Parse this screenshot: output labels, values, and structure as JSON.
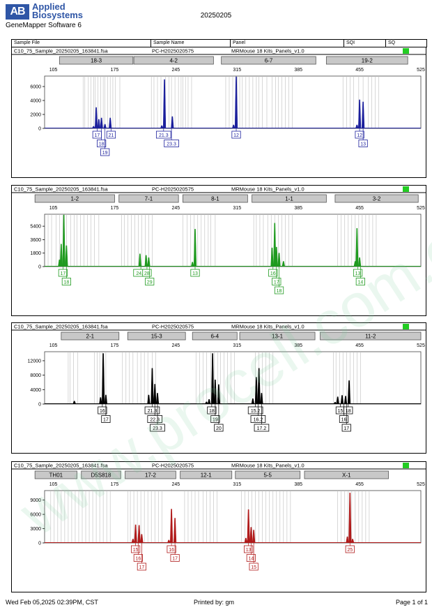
{
  "header": {
    "logo_mark": "AB",
    "brand_line1": "Applied",
    "brand_line2": "Biosystems",
    "software": "GeneMapper Software 6",
    "run_date": "20250205",
    "columns": [
      "Sample File",
      "Sample Name",
      "Panel",
      "SQI",
      "SQ"
    ]
  },
  "footer": {
    "timestamp": "Wed Feb 05,2025 02:39PM, CST",
    "printed_by": "Printed by: gm",
    "page": "Page 1 of 1"
  },
  "panels": [
    {
      "sample_file": "C10_75_Sample_20250205_163841.fsa",
      "sample_name": "PC-H2025020575",
      "panel_name": "MRMouse 18 Kits_Panels_v1.0",
      "dye_color": "#1b1f9c",
      "sq_color": "#22cc22",
      "bins": [
        {
          "label": "18-3",
          "start": 112,
          "end": 196
        },
        {
          "label": "4-2",
          "start": 197,
          "end": 288
        },
        {
          "label": "6-7",
          "start": 297,
          "end": 405
        },
        {
          "label": "19-2",
          "start": 417,
          "end": 510
        }
      ]
    },
    {
      "sample_file": "C10_75_Sample_20250205_163841.fsa",
      "sample_name": "PC-H2025020575",
      "panel_name": "MRMouse 18 Kits_Panels_v1.0",
      "dye_color": "#1f9a1f",
      "sq_color": "#22cc22",
      "bins": [
        {
          "label": "1-2",
          "start": 84,
          "end": 175
        },
        {
          "label": "7-1",
          "start": 180,
          "end": 248
        },
        {
          "label": "8-1",
          "start": 253,
          "end": 327
        },
        {
          "label": "1-1",
          "start": 332,
          "end": 417
        },
        {
          "label": "3-2",
          "start": 427,
          "end": 522
        }
      ]
    },
    {
      "sample_file": "C10_75_Sample_20250205_163841.fsa",
      "sample_name": "PC-H2025020575",
      "panel_name": "MRMouse 18 Kits_Panels_v1.0",
      "dye_color": "#000000",
      "sq_color": "#22cc22",
      "bins": [
        {
          "label": "2-1",
          "start": 114,
          "end": 180
        },
        {
          "label": "15-3",
          "start": 190,
          "end": 256
        },
        {
          "label": "6-4",
          "start": 264,
          "end": 315
        },
        {
          "label": "13-1",
          "start": 318,
          "end": 404
        },
        {
          "label": "11-2",
          "start": 410,
          "end": 525
        }
      ]
    },
    {
      "sample_file": "C10_75_Sample_20250205_163841.fsa",
      "sample_name": "PC-H2025020575",
      "panel_name": "MRMouse 18 Kits_Panels_v1.0",
      "dye_color": "#b01a1a",
      "sq_color": "#22cc22",
      "bins": [
        {
          "label": "TH01",
          "start": 84,
          "end": 132
        },
        {
          "label": "D5S818",
          "start": 137,
          "end": 182
        },
        {
          "label": "17-2",
          "start": 187,
          "end": 245
        },
        {
          "label": "12-1",
          "start": 250,
          "end": 309
        },
        {
          "label": "5-5",
          "start": 313,
          "end": 387
        },
        {
          "label": "X-1",
          "start": 392,
          "end": 488
        }
      ]
    }
  ],
  "chart_data": [
    {
      "type": "line",
      "xlim": [
        95,
        525
      ],
      "x_ticks": [
        105,
        175,
        245,
        315,
        385,
        455,
        525
      ],
      "ylim": [
        0,
        7500
      ],
      "y_ticks": [
        0,
        2000,
        4000,
        6000
      ],
      "grid_lines": [
        139,
        141,
        145,
        148,
        151,
        153,
        156,
        159,
        162,
        164,
        167,
        170,
        173,
        176,
        181,
        217,
        220,
        224,
        228,
        233,
        237,
        240,
        244,
        248,
        251,
        253,
        256,
        259,
        263,
        302,
        306,
        310,
        315,
        318,
        321,
        325,
        329,
        333,
        337,
        340,
        344,
        349,
        355,
        359,
        362,
        366,
        370,
        374,
        378,
        436,
        440,
        444,
        448,
        454,
        459,
        465,
        469,
        473,
        477
      ],
      "peaks": [
        {
          "x": 154,
          "y": 3000
        },
        {
          "x": 157,
          "y": 1300
        },
        {
          "x": 160,
          "y": 1500
        },
        {
          "x": 164,
          "y": 600
        },
        {
          "x": 170,
          "y": 1500
        },
        {
          "x": 151,
          "y": 300
        },
        {
          "x": 232,
          "y": 7000
        },
        {
          "x": 241,
          "y": 1700
        },
        {
          "x": 229,
          "y": 400
        },
        {
          "x": 314,
          "y": 7400
        },
        {
          "x": 311,
          "y": 500
        },
        {
          "x": 455,
          "y": 4100
        },
        {
          "x": 459,
          "y": 3800
        },
        {
          "x": 452,
          "y": 500
        }
      ],
      "allele_labels": [
        {
          "x": 155,
          "row": 0,
          "text": "17"
        },
        {
          "x": 160,
          "row": 1,
          "text": "18"
        },
        {
          "x": 164,
          "row": 2,
          "text": "19"
        },
        {
          "x": 171,
          "row": 0,
          "text": "21"
        },
        {
          "x": 231,
          "row": 0,
          "text": "21.3"
        },
        {
          "x": 240,
          "row": 1,
          "text": "23.3"
        },
        {
          "x": 314,
          "row": 0,
          "text": "12"
        },
        {
          "x": 455,
          "row": 0,
          "text": "12"
        },
        {
          "x": 459,
          "row": 1,
          "text": "13"
        }
      ]
    },
    {
      "type": "line",
      "xlim": [
        95,
        525
      ],
      "x_ticks": [
        105,
        175,
        245,
        315,
        385,
        455,
        525
      ],
      "ylim": [
        0,
        7000
      ],
      "y_ticks": [
        0,
        1800,
        3600,
        5400
      ],
      "grid_lines": [
        99,
        103,
        108,
        112,
        116,
        120,
        125,
        129,
        132,
        136,
        140,
        144,
        148,
        152,
        157,
        183,
        186,
        190,
        194,
        198,
        202,
        206,
        210,
        214,
        218,
        253,
        258,
        262,
        266,
        270,
        274,
        278,
        282,
        285,
        290,
        334,
        337,
        341,
        345,
        350,
        354,
        358,
        362,
        366,
        370,
        374,
        378,
        430,
        434,
        438,
        442,
        446,
        450,
        454,
        458,
        462,
        466,
        470,
        474
      ],
      "peaks": [
        {
          "x": 112,
          "y": 900
        },
        {
          "x": 114,
          "y": 3000
        },
        {
          "x": 117,
          "y": 6900
        },
        {
          "x": 120,
          "y": 2800
        },
        {
          "x": 204,
          "y": 1700
        },
        {
          "x": 211,
          "y": 1500
        },
        {
          "x": 214,
          "y": 1200
        },
        {
          "x": 267,
          "y": 5000
        },
        {
          "x": 264,
          "y": 600
        },
        {
          "x": 355,
          "y": 2500
        },
        {
          "x": 358,
          "y": 5800
        },
        {
          "x": 360,
          "y": 2600
        },
        {
          "x": 363,
          "y": 1800
        },
        {
          "x": 368,
          "y": 700
        },
        {
          "x": 450,
          "y": 700
        },
        {
          "x": 452,
          "y": 5100
        },
        {
          "x": 455,
          "y": 1200
        }
      ],
      "allele_labels": [
        {
          "x": 116,
          "row": 0,
          "text": "17"
        },
        {
          "x": 120,
          "row": 1,
          "text": "18"
        },
        {
          "x": 205,
          "row": 0,
          "text": "24.2"
        },
        {
          "x": 212,
          "row": 0,
          "text": "28"
        },
        {
          "x": 215,
          "row": 1,
          "text": "29"
        },
        {
          "x": 267,
          "row": 0,
          "text": "13"
        },
        {
          "x": 356,
          "row": 0,
          "text": "16"
        },
        {
          "x": 360,
          "row": 1,
          "text": "17"
        },
        {
          "x": 363,
          "row": 2,
          "text": "18"
        },
        {
          "x": 453,
          "row": 0,
          "text": "13"
        },
        {
          "x": 456,
          "row": 1,
          "text": "14"
        }
      ]
    },
    {
      "type": "line",
      "xlim": [
        95,
        525
      ],
      "x_ticks": [
        105,
        175,
        245,
        315,
        385,
        455,
        525
      ],
      "ylim": [
        0,
        14500
      ],
      "y_ticks": [
        0,
        4000,
        8000,
        12000
      ],
      "grid_lines": [
        122,
        124,
        128,
        133,
        152,
        155,
        158,
        161,
        165,
        184,
        188,
        192,
        196,
        201,
        205,
        209,
        213,
        218,
        222,
        268,
        272,
        276,
        280,
        285,
        289,
        293,
        296,
        300,
        304,
        308,
        312,
        336,
        340,
        344,
        348,
        352,
        356,
        425,
        428,
        432,
        436,
        440,
        444,
        448,
        452,
        456
      ],
      "peaks": [
        {
          "x": 129,
          "y": 800
        },
        {
          "x": 159,
          "y": 1800
        },
        {
          "x": 162,
          "y": 14000
        },
        {
          "x": 165,
          "y": 2500
        },
        {
          "x": 214,
          "y": 2500
        },
        {
          "x": 218,
          "y": 9900
        },
        {
          "x": 221,
          "y": 5500
        },
        {
          "x": 224,
          "y": 3000
        },
        {
          "x": 283,
          "y": 1300
        },
        {
          "x": 287,
          "y": 14000
        },
        {
          "x": 290,
          "y": 6700
        },
        {
          "x": 294,
          "y": 5400
        },
        {
          "x": 280,
          "y": 600
        },
        {
          "x": 333,
          "y": 1500
        },
        {
          "x": 337,
          "y": 7400
        },
        {
          "x": 340,
          "y": 9900
        },
        {
          "x": 343,
          "y": 3000
        },
        {
          "x": 430,
          "y": 2000
        },
        {
          "x": 435,
          "y": 2400
        },
        {
          "x": 439,
          "y": 2200
        },
        {
          "x": 443,
          "y": 6500
        },
        {
          "x": 427,
          "y": 500
        }
      ],
      "allele_labels": [
        {
          "x": 161,
          "row": 0,
          "text": "16"
        },
        {
          "x": 165,
          "row": 1,
          "text": "17"
        },
        {
          "x": 218,
          "row": 0,
          "text": "21.3"
        },
        {
          "x": 221,
          "row": 1,
          "text": "22.3"
        },
        {
          "x": 224,
          "row": 2,
          "text": "23.3"
        },
        {
          "x": 286,
          "row": 0,
          "text": "18"
        },
        {
          "x": 290,
          "row": 1,
          "text": "19"
        },
        {
          "x": 294,
          "row": 2,
          "text": "20"
        },
        {
          "x": 336,
          "row": 0,
          "text": "15.2"
        },
        {
          "x": 339,
          "row": 1,
          "text": "16.2"
        },
        {
          "x": 343,
          "row": 2,
          "text": "17.2"
        },
        {
          "x": 433,
          "row": 0,
          "text": "15"
        },
        {
          "x": 437,
          "row": 1,
          "text": "16"
        },
        {
          "x": 442,
          "row": 0,
          "text": "18"
        },
        {
          "x": 440,
          "row": 2,
          "text": "17"
        }
      ]
    },
    {
      "type": "line",
      "xlim": [
        95,
        525
      ],
      "x_ticks": [
        105,
        175,
        245,
        315,
        385,
        455,
        525
      ],
      "ylim": [
        0,
        11000
      ],
      "y_ticks": [
        0,
        3000,
        6000,
        9000
      ],
      "grid_lines": [
        102,
        106,
        110,
        114,
        118,
        122,
        126,
        130,
        134,
        138,
        142,
        146,
        150,
        154,
        158,
        162,
        166,
        170,
        190,
        193,
        197,
        201,
        205,
        209,
        213,
        217,
        221,
        225,
        229,
        255,
        259,
        263,
        267,
        271,
        276,
        280,
        284,
        288,
        292,
        320,
        324,
        328,
        332,
        336,
        340,
        344,
        348,
        352,
        356,
        360,
        364,
        368,
        372,
        376,
        430,
        434,
        438,
        442,
        446,
        450,
        454,
        458,
        462,
        466
      ],
      "peaks": [
        {
          "x": 196,
          "y": 800
        },
        {
          "x": 199,
          "y": 3800
        },
        {
          "x": 203,
          "y": 3700
        },
        {
          "x": 206,
          "y": 1800
        },
        {
          "x": 240,
          "y": 7100
        },
        {
          "x": 244,
          "y": 5200
        },
        {
          "x": 237,
          "y": 600
        },
        {
          "x": 325,
          "y": 1000
        },
        {
          "x": 328,
          "y": 7000
        },
        {
          "x": 331,
          "y": 3300
        },
        {
          "x": 334,
          "y": 2700
        },
        {
          "x": 441,
          "y": 1300
        },
        {
          "x": 444,
          "y": 10500
        },
        {
          "x": 447,
          "y": 800
        }
      ],
      "allele_labels": [
        {
          "x": 199,
          "row": 0,
          "text": "15"
        },
        {
          "x": 202,
          "row": 1,
          "text": "16"
        },
        {
          "x": 206,
          "row": 2,
          "text": "17"
        },
        {
          "x": 240,
          "row": 0,
          "text": "16"
        },
        {
          "x": 244,
          "row": 1,
          "text": "17"
        },
        {
          "x": 328,
          "row": 0,
          "text": "13"
        },
        {
          "x": 331,
          "row": 1,
          "text": "14"
        },
        {
          "x": 334,
          "row": 2,
          "text": "15"
        },
        {
          "x": 444,
          "row": 0,
          "text": "25"
        }
      ]
    }
  ]
}
